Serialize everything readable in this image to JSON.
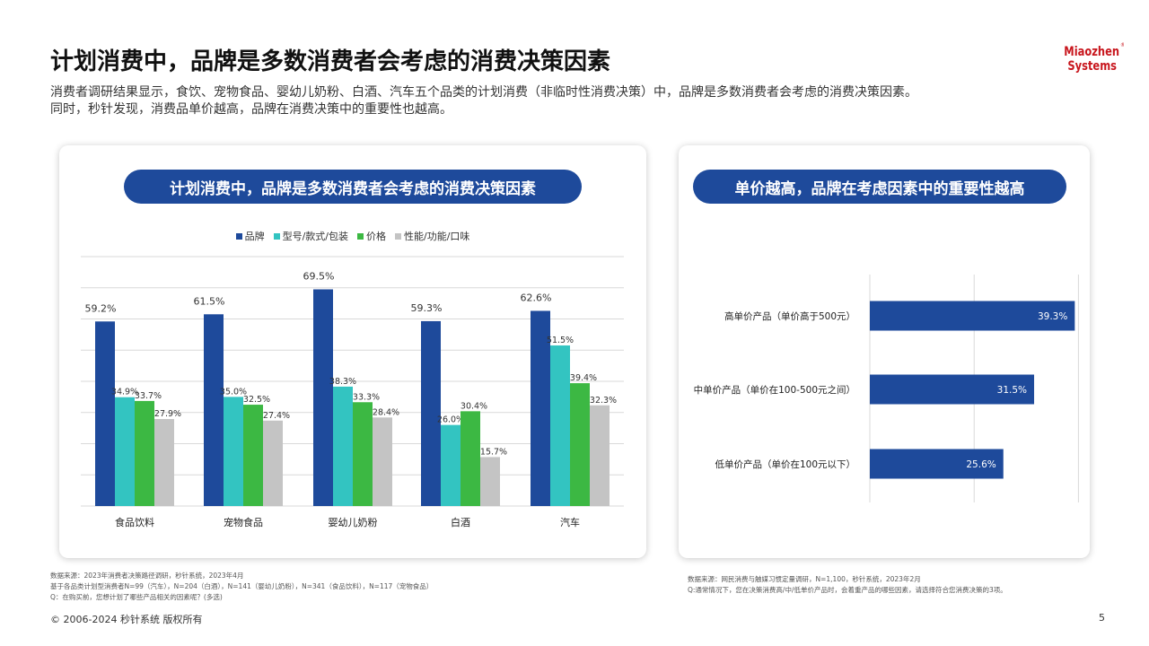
{
  "header": {
    "title": "计划消费中，品牌是多数消费者会考虑的消费决策因素",
    "subtitle_line1": "消费者调研结果显示，食饮、宠物食品、婴幼儿奶粉、白酒、汽车五个品类的计划消费（非临时性消费决策）中，品牌是多数消费者会考虑的消费决策因素。",
    "subtitle_line2": "同时，秒针发现，消费品单价越高，品牌在消费决策中的重要性也越高。",
    "logo_line1": "Miaozhen",
    "logo_line2": "Systems",
    "logo_mark": "®"
  },
  "colors": {
    "brand": "#1e4a9b",
    "model": "#33c4c1",
    "price": "#3cb843",
    "performance": "#c4c4c4",
    "gridline": "#d9d9d9"
  },
  "left_panel": {
    "heading": "计划消费中，品牌是多数消费者会考虑的消费决策因素",
    "source_line1": "数据来源：2023年消费者决策路径调研，秒针系统，2023年4月",
    "source_line2": "基于各品类计划型消费者N=99（汽车），N=204（白酒），N=141（婴幼儿奶粉），N=341（食品饮料），N=117（宠物食品）",
    "source_line3": "Q：在购买前，您想计划了哪些产品相关的因素呢？(多选)"
  },
  "right_panel": {
    "heading": "单价越高，品牌在考虑因素中的重要性越高",
    "source_line1": "数据来源：网民消费与触媒习惯定量调研，N=1,100，秒针系统，2023年2月",
    "source_line2": "Q:通常情况下，您在决策消费高/中/低单价产品时，会着重产品的哪些因素，请选择符合您消费决策的3项。"
  },
  "chart_data": [
    {
      "type": "bar",
      "title": "计划消费中，品牌是多数消费者会考虑的消费决策因素",
      "categories": [
        "食品饮料",
        "宠物食品",
        "婴幼儿奶粉",
        "白酒",
        "汽车"
      ],
      "series": [
        {
          "name": "品牌",
          "values": [
            59.2,
            61.5,
            69.5,
            59.3,
            62.6
          ]
        },
        {
          "name": "型号/款式/包装",
          "values": [
            34.9,
            35.0,
            38.3,
            26.0,
            51.5
          ]
        },
        {
          "name": "价格",
          "values": [
            33.7,
            32.5,
            33.3,
            30.4,
            39.4
          ]
        },
        {
          "name": "性能/功能/口味",
          "values": [
            27.9,
            27.4,
            28.4,
            15.7,
            32.3
          ]
        }
      ],
      "value_labels": [
        [
          "59.2%",
          "61.5%",
          "69.5%",
          "59.3%",
          "62.6%"
        ],
        [
          "34.9%",
          "35.0%",
          "38.3%",
          "26.0%",
          "51.5%"
        ],
        [
          "33.7%",
          "32.5%",
          "33.3%",
          "30.4%",
          "39.4%"
        ],
        [
          "27.9%",
          "27.4%",
          "28.4%",
          "15.7%",
          "32.3%"
        ]
      ],
      "ylim": [
        0,
        80
      ],
      "grid": true,
      "legend": "top-center"
    },
    {
      "type": "bar",
      "orientation": "horizontal",
      "title": "单价越高，品牌在考虑因素中的重要性越高",
      "categories": [
        "高单价产品（单价高于500元）",
        "中单价产品（单价在100-500元之间）",
        "低单价产品（单价在100元以下）"
      ],
      "values": [
        39.3,
        31.5,
        25.6
      ],
      "value_labels": [
        "39.3%",
        "31.5%",
        "25.6%"
      ],
      "xlim": [
        0,
        50
      ],
      "grid": true
    }
  ],
  "footer": {
    "copyright": "© 2006-2024 秒针系统 版权所有",
    "page_number": "5"
  }
}
